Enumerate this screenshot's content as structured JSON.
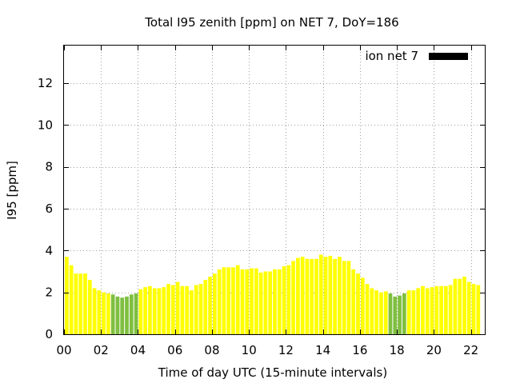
{
  "chart_data": {
    "type": "bar",
    "title": "Total I95 zenith [ppm] on NET 7, DoY=186",
    "xlabel": "Time of day UTC (15-minute intervals)",
    "ylabel": "I95 [ppm]",
    "xlim": [
      0,
      22.75
    ],
    "ylim": [
      0,
      13.8
    ],
    "x_tick_labels": [
      "00",
      "02",
      "04",
      "06",
      "08",
      "10",
      "12",
      "14",
      "16",
      "18",
      "20",
      "22"
    ],
    "y_tick_labels": [
      "0",
      "2",
      "4",
      "6",
      "8",
      "10",
      "12"
    ],
    "grid": true,
    "legend": {
      "placement": "top-right",
      "entries": [
        {
          "label": "ion net 7",
          "color": "#000000"
        }
      ]
    },
    "colors": {
      "yellow": "#ffff00",
      "green": "#7fbf40"
    },
    "interval_hours": 0.25,
    "series": [
      {
        "name": "ion net 7",
        "start_hour": 0,
        "values": [
          3.7,
          3.3,
          2.9,
          2.9,
          2.9,
          2.6,
          2.2,
          2.1,
          2.0,
          1.95,
          1.9,
          1.8,
          1.75,
          1.8,
          1.9,
          1.95,
          2.15,
          2.25,
          2.3,
          2.2,
          2.2,
          2.25,
          2.4,
          2.35,
          2.5,
          2.3,
          2.3,
          2.1,
          2.35,
          2.4,
          2.6,
          2.75,
          2.9,
          3.1,
          3.2,
          3.2,
          3.2,
          3.3,
          3.1,
          3.1,
          3.15,
          3.15,
          2.95,
          3.0,
          3.0,
          3.1,
          3.1,
          3.25,
          3.3,
          3.5,
          3.65,
          3.7,
          3.6,
          3.6,
          3.6,
          3.8,
          3.7,
          3.75,
          3.6,
          3.7,
          3.5,
          3.5,
          3.1,
          2.9,
          2.7,
          2.4,
          2.2,
          2.1,
          2.0,
          2.05,
          1.95,
          1.8,
          1.85,
          1.95,
          2.1,
          2.1,
          2.2,
          2.3,
          2.2,
          2.25,
          2.3,
          2.3,
          2.3,
          2.35,
          2.65,
          2.65,
          2.75,
          2.5,
          2.4,
          2.35
        ],
        "colors": [
          "yellow",
          "yellow",
          "yellow",
          "yellow",
          "yellow",
          "yellow",
          "yellow",
          "yellow",
          "yellow",
          "yellow",
          "green",
          "green",
          "green",
          "green",
          "green",
          "green",
          "yellow",
          "yellow",
          "yellow",
          "yellow",
          "yellow",
          "yellow",
          "yellow",
          "yellow",
          "yellow",
          "yellow",
          "yellow",
          "yellow",
          "yellow",
          "yellow",
          "yellow",
          "yellow",
          "yellow",
          "yellow",
          "yellow",
          "yellow",
          "yellow",
          "yellow",
          "yellow",
          "yellow",
          "yellow",
          "yellow",
          "yellow",
          "yellow",
          "yellow",
          "yellow",
          "yellow",
          "yellow",
          "yellow",
          "yellow",
          "yellow",
          "yellow",
          "yellow",
          "yellow",
          "yellow",
          "yellow",
          "yellow",
          "yellow",
          "yellow",
          "yellow",
          "yellow",
          "yellow",
          "yellow",
          "yellow",
          "yellow",
          "yellow",
          "yellow",
          "yellow",
          "yellow",
          "yellow",
          "green",
          "green",
          "green",
          "green",
          "yellow",
          "yellow",
          "yellow",
          "yellow",
          "yellow",
          "yellow",
          "yellow",
          "yellow",
          "yellow",
          "yellow",
          "yellow",
          "yellow",
          "yellow",
          "yellow",
          "yellow",
          "yellow",
          "yellow"
        ]
      }
    ]
  }
}
